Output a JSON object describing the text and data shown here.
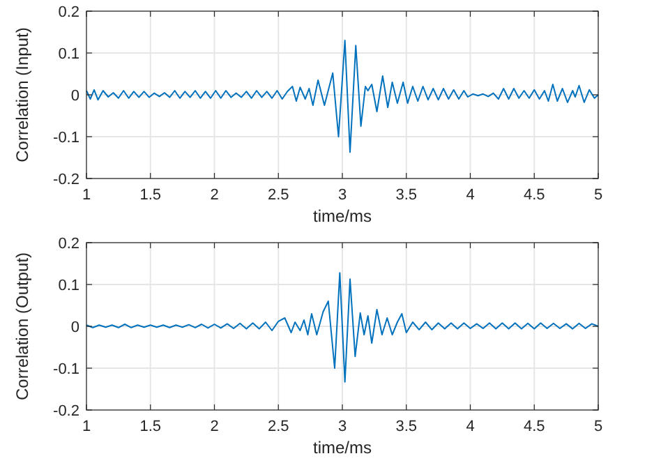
{
  "chart_data": [
    {
      "type": "line",
      "ylabel": "Correlation (Input)",
      "xlabel": "time/ms",
      "xlim": [
        1,
        5
      ],
      "xticks": [
        1,
        1.5,
        2,
        2.5,
        3,
        3.5,
        4,
        4.5,
        5
      ],
      "ylim": [
        -0.2,
        0.2
      ],
      "yticks": [
        -0.2,
        -0.1,
        0,
        0.1,
        0.2
      ],
      "grid": true,
      "series": [
        {
          "color": "#0072bd",
          "x": [
            1,
            1.03,
            1.06,
            1.09,
            1.13,
            1.17,
            1.21,
            1.25,
            1.29,
            1.33,
            1.37,
            1.41,
            1.45,
            1.49,
            1.53,
            1.57,
            1.61,
            1.65,
            1.69,
            1.73,
            1.77,
            1.81,
            1.85,
            1.89,
            1.93,
            1.97,
            2.01,
            2.05,
            2.09,
            2.13,
            2.17,
            2.21,
            2.25,
            2.29,
            2.33,
            2.37,
            2.41,
            2.45,
            2.49,
            2.53,
            2.57,
            2.61,
            2.64,
            2.67,
            2.71,
            2.74,
            2.77,
            2.81,
            2.86,
            2.925,
            2.97,
            3.02,
            3.06,
            3.105,
            3.145,
            3.18,
            3.2,
            3.23,
            3.27,
            3.315,
            3.355,
            3.39,
            3.43,
            3.475,
            3.51,
            3.55,
            3.59,
            3.63,
            3.67,
            3.71,
            3.75,
            3.79,
            3.83,
            3.87,
            3.91,
            3.95,
            3.98,
            4.02,
            4.06,
            4.1,
            4.14,
            4.18,
            4.22,
            4.26,
            4.3,
            4.34,
            4.38,
            4.42,
            4.46,
            4.5,
            4.54,
            4.58,
            4.61,
            4.645,
            4.68,
            4.72,
            4.76,
            4.8,
            4.82,
            4.85,
            4.89,
            4.93,
            4.97,
            5
          ],
          "values": [
            0.01,
            -0.01,
            0.012,
            -0.012,
            0.01,
            -0.005,
            0.005,
            -0.008,
            0.01,
            -0.008,
            0.008,
            -0.006,
            0.008,
            -0.006,
            0.004,
            -0.004,
            0.005,
            -0.006,
            0.01,
            -0.008,
            0.008,
            -0.006,
            0.01,
            -0.008,
            0.008,
            -0.008,
            0.01,
            -0.008,
            0.01,
            -0.006,
            0.004,
            -0.006,
            0.008,
            -0.008,
            0.01,
            -0.006,
            0.008,
            -0.008,
            0.01,
            -0.01,
            0.008,
            0.02,
            -0.015,
            0.018,
            -0.01,
            0.015,
            -0.025,
            0.035,
            -0.025,
            0.052,
            -0.1,
            0.13,
            -0.137,
            0.118,
            -0.075,
            0.02,
            0.01,
            0.025,
            -0.04,
            0.045,
            -0.03,
            0.03,
            -0.02,
            0.03,
            -0.02,
            0.02,
            -0.015,
            0.02,
            -0.012,
            0.015,
            -0.012,
            0.015,
            -0.01,
            0.012,
            -0.01,
            0.01,
            -0.005,
            0.002,
            -0.002,
            0.002,
            -0.004,
            0.004,
            -0.01,
            0.015,
            -0.01,
            0.015,
            -0.008,
            0.01,
            -0.008,
            0.012,
            -0.01,
            0.01,
            -0.015,
            0.025,
            -0.015,
            0.015,
            -0.018,
            0.01,
            -0.005,
            0.022,
            -0.018,
            0.012,
            -0.008,
            0
          ]
        }
      ]
    },
    {
      "type": "line",
      "ylabel": "Correlation (Output)",
      "xlabel": "time/ms",
      "xlim": [
        1,
        5
      ],
      "xticks": [
        1,
        1.5,
        2,
        2.5,
        3,
        3.5,
        4,
        4.5,
        5
      ],
      "ylim": [
        -0.2,
        0.2
      ],
      "yticks": [
        -0.2,
        -0.1,
        0,
        0.1,
        0.2
      ],
      "grid": true,
      "series": [
        {
          "color": "#0072bd",
          "x": [
            1,
            1.05,
            1.1,
            1.15,
            1.2,
            1.25,
            1.3,
            1.35,
            1.4,
            1.45,
            1.5,
            1.55,
            1.6,
            1.65,
            1.7,
            1.75,
            1.8,
            1.85,
            1.9,
            1.95,
            2,
            2.05,
            2.1,
            2.15,
            2.2,
            2.25,
            2.3,
            2.35,
            2.4,
            2.45,
            2.5,
            2.55,
            2.6,
            2.63,
            2.67,
            2.7,
            2.73,
            2.76,
            2.8,
            2.85,
            2.89,
            2.94,
            2.98,
            3.02,
            3.06,
            3.1,
            3.14,
            3.17,
            3.2,
            3.23,
            3.27,
            3.31,
            3.35,
            3.39,
            3.43,
            3.465,
            3.5,
            3.55,
            3.6,
            3.65,
            3.7,
            3.75,
            3.8,
            3.85,
            3.9,
            3.95,
            4,
            4.05,
            4.1,
            4.15,
            4.2,
            4.25,
            4.3,
            4.35,
            4.4,
            4.45,
            4.5,
            4.55,
            4.6,
            4.65,
            4.7,
            4.75,
            4.8,
            4.85,
            4.9,
            4.95,
            5
          ],
          "values": [
            0.003,
            -0.003,
            0.003,
            -0.002,
            0.003,
            -0.003,
            0.005,
            -0.003,
            0.003,
            -0.002,
            0.003,
            -0.002,
            0.003,
            -0.003,
            0.003,
            -0.002,
            0.004,
            -0.003,
            0.005,
            -0.004,
            0.005,
            -0.004,
            0.006,
            -0.005,
            0.007,
            -0.006,
            0.008,
            -0.006,
            0.01,
            -0.01,
            0.012,
            0.02,
            -0.015,
            0.01,
            -0.01,
            0.015,
            -0.02,
            0.03,
            -0.02,
            0.035,
            0.06,
            -0.1,
            0.128,
            -0.133,
            0.113,
            -0.072,
            0.032,
            -0.02,
            0.025,
            -0.04,
            0.04,
            -0.02,
            0.02,
            -0.02,
            0.01,
            0.03,
            -0.015,
            0.01,
            -0.008,
            0.01,
            -0.008,
            0.008,
            -0.006,
            0.008,
            -0.006,
            0.008,
            -0.005,
            0.006,
            -0.005,
            0.008,
            -0.006,
            0.008,
            -0.006,
            0.008,
            -0.006,
            0.007,
            -0.006,
            0.008,
            -0.005,
            0.007,
            -0.005,
            0.006,
            -0.006,
            0.007,
            -0.005,
            0.006,
            0
          ]
        }
      ]
    }
  ]
}
